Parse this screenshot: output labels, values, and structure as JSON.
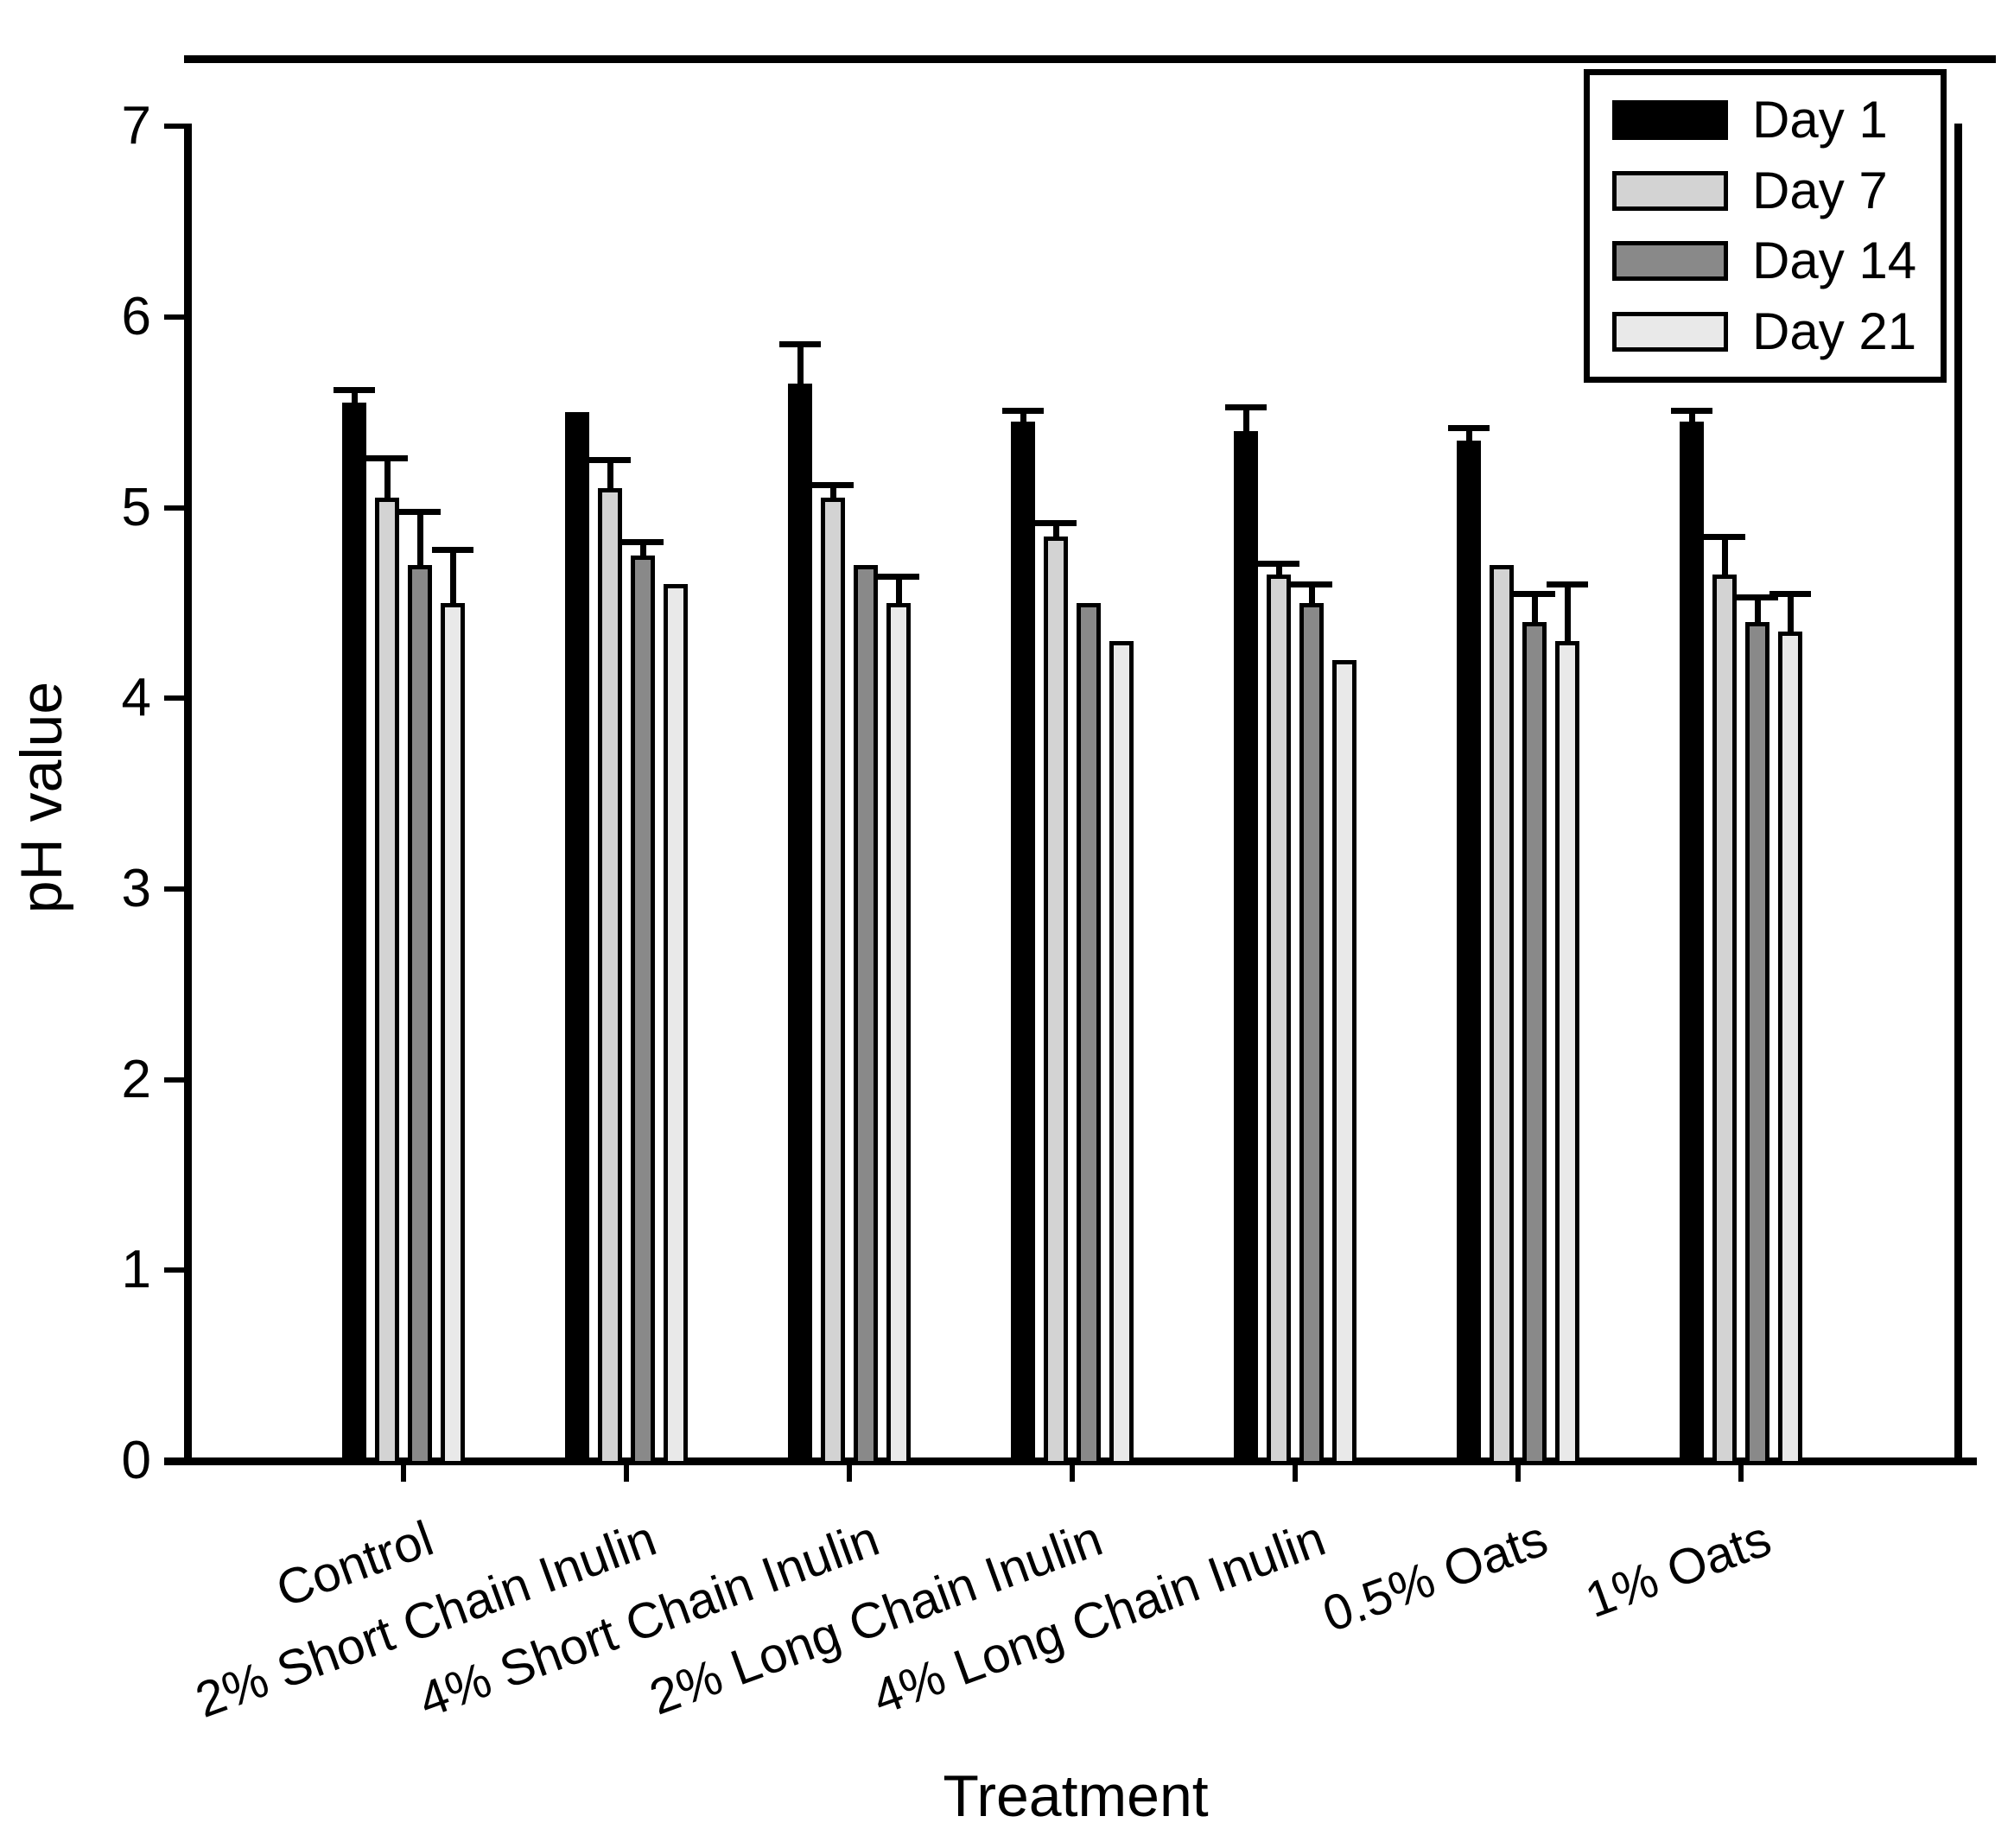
{
  "figure": {
    "background": "#ffffff"
  },
  "chart_data": {
    "type": "bar",
    "title": "",
    "xlabel": "Treatment",
    "ylabel": "pH value",
    "ylim": [
      0,
      7
    ],
    "yticks": [
      0,
      1,
      2,
      3,
      4,
      5,
      6,
      7
    ],
    "grid": false,
    "legend_position": "top-right-inside",
    "bar_outline_color": "#000000",
    "error_bars": "upper-only",
    "categories": [
      "Control",
      "2% Short Chain Inulin",
      "4% Short Chain Inulin",
      "2% Long Chain Inulin",
      "4% Long Chain Inulin",
      "0.5% Oats",
      "1% Oats"
    ],
    "series": [
      {
        "name": "Day 1",
        "color": "#000000",
        "values": [
          5.55,
          5.5,
          5.65,
          5.45,
          5.4,
          5.35,
          5.45
        ],
        "errors": [
          0.07,
          0,
          0.21,
          0.06,
          0.13,
          0.07,
          0.06
        ]
      },
      {
        "name": "Day 7",
        "color": "#d3d3d3",
        "values": [
          5.05,
          5.1,
          5.05,
          4.85,
          4.65,
          4.7,
          4.65
        ],
        "errors": [
          0.21,
          0.15,
          0.07,
          0.07,
          0.06,
          0,
          0.2
        ]
      },
      {
        "name": "Day 14",
        "color": "#898989",
        "values": [
          4.7,
          4.75,
          4.7,
          4.5,
          4.5,
          4.4,
          4.4
        ],
        "errors": [
          0.28,
          0.07,
          0,
          0,
          0.1,
          0.15,
          0.13
        ]
      },
      {
        "name": "Day 21",
        "color": "#e9e9e9",
        "values": [
          4.5,
          4.6,
          4.5,
          4.3,
          4.2,
          4.3,
          4.35
        ],
        "errors": [
          0.28,
          0,
          0.14,
          0,
          0,
          0.3,
          0.2
        ]
      }
    ]
  }
}
